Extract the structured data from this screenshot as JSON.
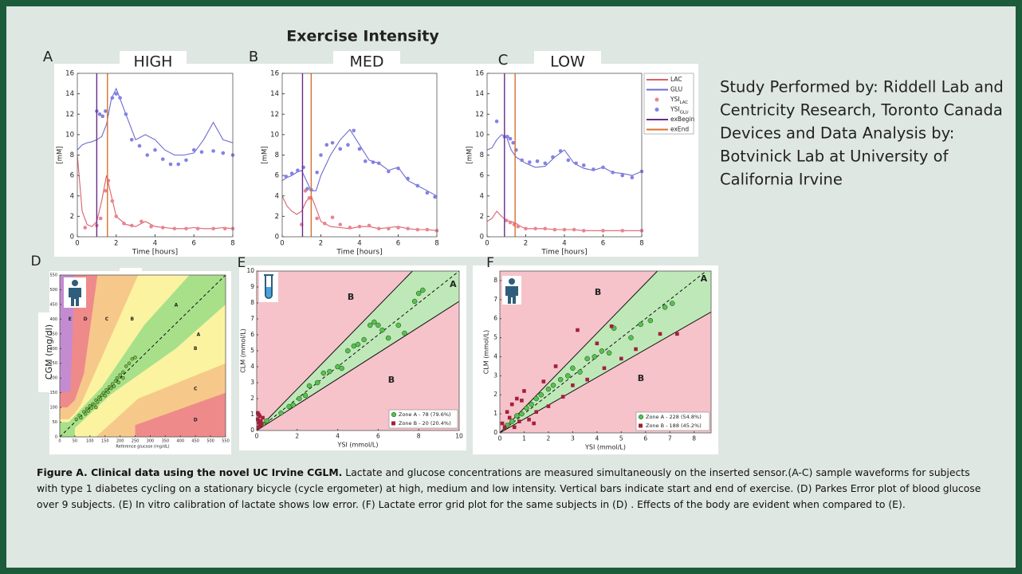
{
  "title": "Exercise Intensity",
  "legend": [
    {
      "name": "LAC",
      "color": "#d9606b",
      "kind": "line"
    },
    {
      "name": "GLU",
      "color": "#6b6bd0",
      "kind": "line"
    },
    {
      "name": "YSI",
      "sub": "LAC",
      "color": "#e88592",
      "kind": "dot"
    },
    {
      "name": "YSI",
      "sub": "GLU",
      "color": "#8282e6",
      "kind": "dot"
    },
    {
      "name": "exBegin",
      "color": "#6a2a86",
      "kind": "line"
    },
    {
      "name": "exEnd",
      "color": "#d8702c",
      "kind": "line"
    }
  ],
  "top_panels": [
    {
      "letter": "A",
      "intensity": "HIGH",
      "xlabel": "Time [hours]",
      "ylabel": "[mM]",
      "xlim": [
        0,
        8
      ],
      "ylim": [
        0,
        16
      ],
      "xticks": [
        0,
        2,
        4,
        6,
        8
      ],
      "yticks": [
        0,
        2,
        4,
        6,
        8,
        10,
        12,
        14,
        16
      ],
      "ex_begin": 1.0,
      "ex_end": 1.55,
      "t": [
        0,
        0.25,
        0.5,
        0.75,
        1,
        1.25,
        1.5,
        1.75,
        2,
        2.5,
        3,
        3.5,
        4,
        4.5,
        5,
        5.5,
        6,
        6.5,
        7,
        7.5,
        8
      ],
      "lac": [
        8,
        2.5,
        1.2,
        1,
        1.5,
        3.5,
        6,
        4,
        2,
        1.2,
        1,
        1.5,
        1,
        0.9,
        0.8,
        0.8,
        0.9,
        0.8,
        0.8,
        0.9,
        0.8
      ],
      "glu": [
        8.5,
        9,
        9.2,
        9.3,
        9.5,
        9.8,
        11,
        13.5,
        14.5,
        12,
        9.5,
        10,
        9.5,
        8.5,
        8,
        8,
        8.2,
        9.5,
        11.2,
        9.5,
        9.2
      ],
      "ysi_lac": {
        "x": [
          0.4,
          1,
          1.2,
          1.45,
          1.6,
          1.8,
          2,
          2.4,
          2.8,
          3.3,
          3.8,
          4.4,
          5,
          5.6,
          6.2,
          7,
          7.6,
          8
        ],
        "y": [
          0.9,
          1.1,
          1.8,
          4.5,
          5.5,
          3.5,
          2,
          1.3,
          1.1,
          1.5,
          1,
          0.9,
          0.8,
          0.8,
          0.8,
          0.8,
          0.8,
          0.8
        ]
      },
      "ysi_glu": {
        "x": [
          1,
          1.15,
          1.3,
          1.45,
          1.8,
          2,
          2.2,
          2.5,
          2.8,
          3.2,
          3.6,
          4,
          4.4,
          4.8,
          5.2,
          5.6,
          6,
          6.4,
          7,
          7.5,
          8
        ],
        "y": [
          12.3,
          12,
          11.8,
          12.3,
          13.6,
          14,
          13.6,
          12,
          9.5,
          8.9,
          8,
          8.5,
          7.6,
          7.1,
          7.1,
          7.5,
          8.5,
          8.3,
          8.4,
          8.2,
          8
        ]
      }
    },
    {
      "letter": "B",
      "intensity": "MED",
      "xlabel": "Time [hours]",
      "ylabel": "[mM]",
      "xlim": [
        0,
        8
      ],
      "ylim": [
        0,
        16
      ],
      "xticks": [
        0,
        2,
        4,
        6,
        8
      ],
      "yticks": [
        0,
        2,
        4,
        6,
        8,
        10,
        12,
        14,
        16
      ],
      "ex_begin": 1.05,
      "ex_end": 1.5,
      "t": [
        0,
        0.25,
        0.5,
        0.75,
        1,
        1.25,
        1.5,
        1.75,
        2,
        2.5,
        3,
        3.5,
        4,
        4.5,
        5,
        5.5,
        6,
        6.5,
        7,
        7.5,
        8
      ],
      "lac": [
        4,
        3,
        2.5,
        2.2,
        2.5,
        3.5,
        4,
        2.8,
        1.5,
        1,
        0.9,
        0.8,
        1,
        1,
        0.8,
        0.9,
        1,
        0.8,
        0.7,
        0.7,
        0.6
      ],
      "glu": [
        5.5,
        5.8,
        6,
        6.3,
        6.5,
        5.5,
        4.5,
        4.5,
        6,
        8,
        9.5,
        10.5,
        9,
        7.5,
        7.2,
        6.5,
        6.8,
        5.5,
        5,
        4.5,
        4
      ],
      "ysi_lac": {
        "x": [
          1,
          1.2,
          1.4,
          1.8,
          2.2,
          2.6,
          3,
          3.5,
          4,
          4.5,
          5,
          5.5,
          6,
          6.5,
          7,
          7.5,
          8
        ],
        "y": [
          1.2,
          4.5,
          3.8,
          1.8,
          1.3,
          1.9,
          1.2,
          0.9,
          1,
          1.1,
          0.8,
          0.8,
          0.9,
          0.8,
          0.7,
          0.7,
          0.6
        ]
      },
      "ysi_glu": {
        "x": [
          0.2,
          0.5,
          0.8,
          1.1,
          1.3,
          1.5,
          1.8,
          2,
          2.3,
          2.6,
          3,
          3.4,
          3.7,
          4,
          4.3,
          4.7,
          5,
          5.5,
          6,
          6.5,
          7,
          7.5,
          7.9
        ],
        "y": [
          5.9,
          6.2,
          6.5,
          6.8,
          4.7,
          4.6,
          6.3,
          8,
          9,
          9.2,
          8.6,
          9,
          10.4,
          8.6,
          7.4,
          7.3,
          7.2,
          6.4,
          6.7,
          5.7,
          5,
          4.3,
          3.9
        ]
      }
    },
    {
      "letter": "C",
      "intensity": "LOW",
      "xlabel": "Time [hours]",
      "ylabel": "[mM]",
      "xlim": [
        0,
        8
      ],
      "ylim": [
        0,
        16
      ],
      "xticks": [
        0,
        2,
        4,
        6,
        8
      ],
      "yticks": [
        0,
        2,
        4,
        6,
        8,
        10,
        12,
        14,
        16
      ],
      "ex_begin": 0.9,
      "ex_end": 1.45,
      "t": [
        0,
        0.25,
        0.5,
        0.75,
        1,
        1.25,
        1.5,
        1.75,
        2,
        2.5,
        3,
        3.5,
        4,
        4.5,
        5,
        5.5,
        6,
        6.5,
        7,
        7.5,
        8
      ],
      "lac": [
        1.5,
        1.8,
        2.5,
        2,
        1.6,
        1.5,
        1.3,
        1,
        0.8,
        0.8,
        0.8,
        0.7,
        0.7,
        0.7,
        0.6,
        0.6,
        0.6,
        0.6,
        0.6,
        0.6,
        0.6
      ],
      "glu": [
        8.5,
        8.7,
        9.5,
        10,
        9.8,
        8.5,
        7.8,
        7.5,
        7.2,
        6.8,
        6.9,
        7.8,
        8.5,
        7.2,
        6.7,
        6.5,
        6.8,
        6.3,
        6.2,
        6,
        6.4
      ],
      "ysi_lac": {
        "x": [
          1,
          1.2,
          1.4,
          1.6,
          2,
          2.5,
          3,
          3.5,
          4,
          4.5,
          5,
          6,
          7,
          8
        ],
        "y": [
          1.6,
          1.4,
          1.2,
          1,
          0.8,
          0.8,
          0.8,
          0.7,
          0.7,
          0.7,
          0.6,
          0.6,
          0.6,
          0.6
        ]
      },
      "ysi_glu": {
        "x": [
          0.5,
          0.9,
          1.05,
          1.2,
          1.35,
          1.5,
          1.8,
          2.2,
          2.6,
          3,
          3.4,
          3.8,
          4.2,
          4.6,
          5,
          5.5,
          6,
          6.5,
          7,
          7.5,
          8
        ],
        "y": [
          11.3,
          9.8,
          9.8,
          9.6,
          9.2,
          8.5,
          7.5,
          7.3,
          7.4,
          7.2,
          7.8,
          8.4,
          7.5,
          7.2,
          7,
          6.6,
          6.8,
          6.3,
          6,
          5.8,
          6.4
        ]
      }
    }
  ],
  "study_text": [
    "Study Performed by: Riddell Lab and",
    "Centricity Research, Toronto Canada",
    "Devices and Data Analysis by:",
    "Botvinick Lab at University of",
    "California Irvine"
  ],
  "grid_panels": [
    {
      "letter": "D",
      "xlabel": "Reference glucose (mg/dL)",
      "ylabel": "CGM (mg/dl)",
      "xlim": [
        0,
        550
      ],
      "ylim": [
        0,
        550
      ],
      "xticks": [
        0,
        50,
        100,
        150,
        200,
        250,
        300,
        350,
        400,
        450,
        500,
        550
      ],
      "yticks": [
        0,
        50,
        100,
        150,
        200,
        250,
        300,
        350,
        400,
        450,
        500,
        550
      ],
      "zone_labels": [
        "E",
        "D",
        "C",
        "B",
        "A",
        "A",
        "B",
        "C",
        "D"
      ],
      "series": [
        {
          "color": "#7cc243",
          "marker": "circle",
          "x": [
            55,
            65,
            70,
            80,
            85,
            90,
            95,
            100,
            105,
            110,
            115,
            120,
            125,
            130,
            135,
            140,
            145,
            150,
            155,
            160,
            165,
            170,
            175,
            180,
            185,
            190,
            195,
            200,
            210,
            220,
            230,
            240,
            250,
            210,
            120
          ],
          "y": [
            60,
            72,
            65,
            85,
            78,
            95,
            88,
            105,
            98,
            112,
            108,
            125,
            118,
            135,
            128,
            142,
            150,
            140,
            160,
            152,
            170,
            165,
            180,
            172,
            190,
            200,
            185,
            210,
            220,
            240,
            250,
            265,
            270,
            200,
            100
          ]
        }
      ]
    },
    {
      "letter": "E",
      "xlabel": "YSI (mmol/L)",
      "ylabel": "CLM (mmol/L)",
      "xlim": [
        0,
        10
      ],
      "ylim": [
        0,
        10
      ],
      "xticks": [
        0,
        2,
        4,
        6,
        8,
        10
      ],
      "yticks": [
        0,
        1,
        2,
        3,
        4,
        5,
        6,
        7,
        8,
        9,
        10
      ],
      "zone_labels": [
        "A",
        "B",
        "B"
      ],
      "series": [
        {
          "name": "Zone A - 78 (79.6%)",
          "color": "#56c24e",
          "marker": "circle",
          "x": [
            0.3,
            0.5,
            1.2,
            1.6,
            1.8,
            2.1,
            2.4,
            2.6,
            3,
            3.3,
            3.6,
            4,
            4.2,
            4.5,
            4.8,
            5,
            5.3,
            5.6,
            5.8,
            6,
            6.2,
            6.5,
            7,
            7.3,
            7.8,
            8,
            8.2
          ],
          "y": [
            0.4,
            0.6,
            1.1,
            1.5,
            1.6,
            2,
            2.2,
            2.8,
            3,
            3.6,
            3.7,
            4,
            3.9,
            5,
            5.3,
            5.4,
            5.7,
            6.6,
            6.8,
            6.6,
            6.3,
            5.8,
            6.6,
            6.1,
            8.1,
            8.6,
            8.8
          ]
        },
        {
          "name": "Zone B - 20 (20.4%)",
          "color": "#a3203a",
          "marker": "square",
          "x": [
            0.05,
            0.1,
            0.15,
            0.05,
            0.2,
            0.1,
            0.25,
            0.15,
            0.3,
            0.08
          ],
          "y": [
            1.1,
            1,
            0.9,
            0.7,
            0.6,
            0.5,
            0.4,
            0.3,
            0.8,
            0.2
          ]
        }
      ]
    },
    {
      "letter": "F",
      "xlabel": "YSI (mmol/L)",
      "ylabel": "CLM (mmol/L)",
      "xlim": [
        0,
        8.7
      ],
      "ylim": [
        0,
        8.5
      ],
      "xticks": [
        0,
        1,
        2,
        3,
        4,
        5,
        6,
        7,
        8
      ],
      "yticks": [
        0,
        1,
        2,
        3,
        4,
        5,
        6,
        7,
        8
      ],
      "zone_labels": [
        "A",
        "B",
        "B"
      ],
      "series": [
        {
          "name": "Zone A - 228 (54.8%)",
          "color": "#56c24e",
          "marker": "circle",
          "x": [
            0.3,
            0.5,
            0.7,
            0.9,
            1.1,
            1.3,
            1.5,
            1.7,
            2,
            2.2,
            2.5,
            2.8,
            3,
            3.3,
            3.6,
            3.9,
            4.2,
            4.5,
            4.7,
            5.4,
            5.8,
            6.2,
            6.8,
            7.1
          ],
          "y": [
            0.4,
            0.6,
            0.9,
            1,
            1.3,
            1.5,
            1.8,
            2,
            2.3,
            2.5,
            2.8,
            3,
            3.4,
            3.2,
            3.9,
            4,
            4.3,
            4.2,
            5.5,
            5,
            5.7,
            5.9,
            6.6,
            6.8
          ]
        },
        {
          "name": "Zone B - 188 (45.2%)",
          "color": "#a3203a",
          "marker": "square",
          "x": [
            0.2,
            0.3,
            0.4,
            0.5,
            0.6,
            0.7,
            0.8,
            1,
            1.2,
            1.5,
            1.8,
            2,
            2.3,
            2.6,
            3,
            3.2,
            3.6,
            4,
            4.3,
            4.6,
            5,
            5.6,
            6.6,
            7.3,
            0.1,
            0.9,
            1.4
          ],
          "y": [
            0.3,
            1.1,
            0.8,
            1.5,
            0.3,
            1.8,
            0.6,
            2.2,
            0.7,
            1.1,
            2.7,
            1.4,
            3.5,
            1.9,
            2.5,
            5.4,
            2.8,
            4.7,
            3.4,
            5.6,
            3.9,
            4.4,
            5.2,
            5.2,
            0.5,
            1.7,
            0.5
          ]
        }
      ]
    }
  ],
  "caption": {
    "bold": "Figure A. Clinical data using the novel UC Irvine CGLM.",
    "text": " Lactate and glucose concentrations are measured simultaneously on the inserted sensor.(A-C) sample waveforms for subjects with type 1 diabetes cycling on a stationary bicycle (cycle ergometer) at high, medium and low intensity. Vertical bars indicate start and end of exercise. (D) Parkes Error plot of blood glucose over 9 subjects. (E) In vitro calibration of lactate shows low error. (F) Lactate error grid plot for the same subjects in (D) . Effects of the body are evident when compared to (E)."
  }
}
